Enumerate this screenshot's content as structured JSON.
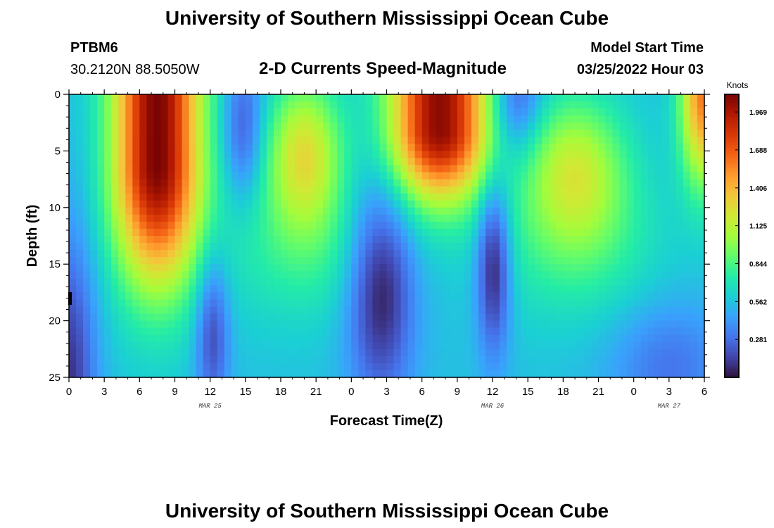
{
  "header": {
    "title": "University of Southern Mississippi Ocean Cube",
    "station_id": "PTBM6",
    "coordinates": "30.2120N  88.5050W",
    "subtitle": "2-D Currents Speed-Magnitude",
    "start_label": "Model Start Time",
    "start_value": "03/25/2022 Hour 03"
  },
  "footer": {
    "title": "University of Southern Mississippi Ocean Cube"
  },
  "colors": {
    "colormap": [
      "#30123b",
      "#4145ab",
      "#4675ed",
      "#39a2fc",
      "#1bcfd4",
      "#24eca6",
      "#61fc6c",
      "#a4fc3b",
      "#d1e834",
      "#f3c63a",
      "#fe9b2d",
      "#f36315",
      "#d93806",
      "#b11901",
      "#7a0403"
    ]
  },
  "chart_data": {
    "type": "heatmap",
    "title": "2-D Currents Speed-Magnitude",
    "xlabel": "Forecast Time(Z)",
    "ylabel": "Depth (ft)",
    "x_ticks": [
      "0",
      "3",
      "6",
      "9",
      "12",
      "15",
      "18",
      "21",
      "0",
      "3",
      "6",
      "9",
      "12",
      "15",
      "18",
      "21",
      "0",
      "3",
      "6"
    ],
    "x_range_hours": [
      0,
      54
    ],
    "day_labels": [
      {
        "label": "MAR 25",
        "hour": 12
      },
      {
        "label": "MAR 26",
        "hour": 36
      },
      {
        "label": "MAR 27",
        "hour": 51
      }
    ],
    "y_ticks": [
      "0",
      "5",
      "10",
      "15",
      "20",
      "25"
    ],
    "y_range_ft": [
      0,
      25
    ],
    "y_inverted": true,
    "colorbar": {
      "label": "Knots",
      "ticks": [
        "1.969",
        "1.688",
        "1.406",
        "1.125",
        "0.844",
        "0.562",
        "0.281"
      ],
      "range": [
        0,
        2.1
      ]
    },
    "speed_peaks": [
      {
        "hour": 7,
        "depth": 3,
        "speed": 2.05
      },
      {
        "hour": 20,
        "depth": 5,
        "speed": 1.2
      },
      {
        "hour": 31,
        "depth": 1,
        "speed": 2.1
      },
      {
        "hour": 43,
        "depth": 6,
        "speed": 1.0
      },
      {
        "hour": 53.5,
        "depth": 0,
        "speed": 1.6
      }
    ],
    "speed_minima": [
      {
        "hour": 0,
        "depth": 25,
        "speed": 0.05
      },
      {
        "hour": 12,
        "depth": 22,
        "speed": 0.1
      },
      {
        "hour": 15,
        "depth": 1,
        "speed": 0.25
      },
      {
        "hour": 26.5,
        "depth": 15,
        "speed": 0.05
      },
      {
        "hour": 36,
        "depth": 14,
        "speed": 0.02
      },
      {
        "hour": 38,
        "depth": 0,
        "speed": 0.2
      },
      {
        "hour": 51,
        "depth": 25,
        "speed": 0.1
      }
    ]
  }
}
